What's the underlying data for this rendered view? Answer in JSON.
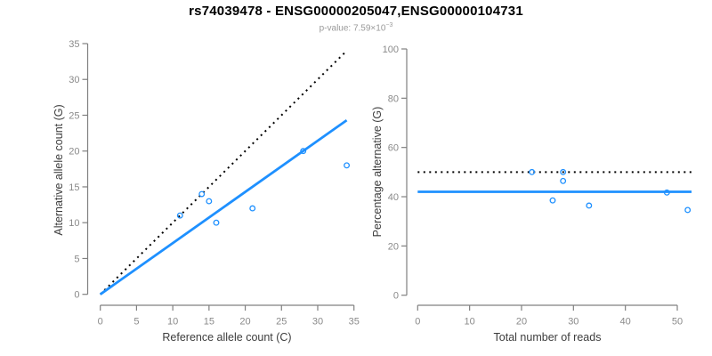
{
  "header": {
    "title": "rs74039478 - ENSG00000205047,ENSG00000104731",
    "subtitle_prefix": "p-value: 7.59×10",
    "subtitle_exponent": "−3"
  },
  "colors": {
    "accent_blue": "#1E90FF",
    "line_black": "#000000",
    "axis_gray": "#808080",
    "tick_label_gray": "#8a8a8a",
    "axis_title_color": "#3d3d3d",
    "subtitle_gray": "#9a9a9a"
  },
  "chart_data": [
    {
      "type": "scatter",
      "name": "alt-vs-ref-allele-count",
      "xlabel": "Reference allele count (C)",
      "ylabel": "Alternative allele count (G)",
      "xlim": [
        0,
        35
      ],
      "ylim": [
        0,
        35
      ],
      "xticks": [
        0,
        5,
        10,
        15,
        20,
        25,
        30,
        35
      ],
      "yticks": [
        0,
        5,
        10,
        15,
        20,
        25,
        30,
        35
      ],
      "grid": false,
      "legend": false,
      "points": [
        [
          11,
          11
        ],
        [
          14,
          14
        ],
        [
          15,
          13
        ],
        [
          16,
          10
        ],
        [
          21,
          12
        ],
        [
          28,
          20
        ],
        [
          34,
          18
        ]
      ],
      "lines": [
        {
          "name": "identity-line",
          "style": "dotted",
          "color": "black",
          "x1": 0,
          "y1": 0,
          "x2": 34,
          "y2": 34
        },
        {
          "name": "fit-line",
          "style": "solid",
          "color": "blue",
          "x1": 0,
          "y1": 0,
          "x2": 34,
          "y2": 24.3
        }
      ]
    },
    {
      "type": "scatter",
      "name": "percentage-alt-vs-total-reads",
      "xlabel": "Total number of reads",
      "ylabel": "Percentage alternative (G)",
      "xlim": [
        0,
        50
      ],
      "ylim": [
        0,
        100
      ],
      "xticks": [
        0,
        10,
        20,
        30,
        40,
        50
      ],
      "yticks": [
        0,
        20,
        40,
        60,
        80,
        100
      ],
      "grid": false,
      "legend": false,
      "points": [
        [
          22,
          50
        ],
        [
          28,
          50
        ],
        [
          28,
          46.4
        ],
        [
          26,
          38.5
        ],
        [
          33,
          36.4
        ],
        [
          48,
          41.7
        ],
        [
          52,
          34.6
        ]
      ],
      "hlines": [
        {
          "name": "expected-50pct-line",
          "style": "dotted",
          "color": "black",
          "y": 50
        },
        {
          "name": "mean-percentage-line",
          "style": "solid",
          "color": "blue",
          "y": 42
        }
      ]
    }
  ]
}
